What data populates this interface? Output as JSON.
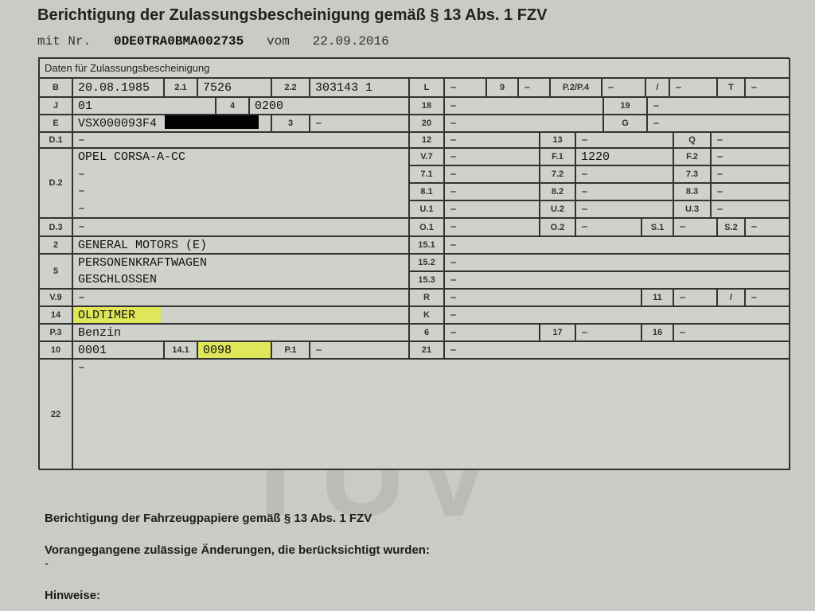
{
  "header": {
    "title": "Berichtigung der Zulassungsbescheinigung gemäß § 13 Abs. 1 FZV",
    "nr_label": "mit Nr.",
    "nr": "0DE0TRA0BMA002735",
    "vom_label": "vom",
    "date": "22.09.2016"
  },
  "watermark": "TÜV",
  "table": {
    "heading": "Daten für Zulassungsbescheinigung",
    "B": {
      "label": "B",
      "value": "20.08.1985"
    },
    "f2_1": {
      "label": "2.1",
      "value": "7526"
    },
    "f2_2": {
      "label": "2.2",
      "value": "303143 1"
    },
    "L": {
      "label": "L",
      "value": "–"
    },
    "f9": {
      "label": "9",
      "value": "–"
    },
    "P2P4": {
      "label": "P.2/P.4",
      "value": "–"
    },
    "slash1": {
      "label": "/",
      "value": "–"
    },
    "T": {
      "label": "T",
      "value": "–"
    },
    "J": {
      "label": "J",
      "value": "01"
    },
    "f4": {
      "label": "4",
      "value": "0200"
    },
    "f18": {
      "label": "18",
      "value": "–"
    },
    "f19": {
      "label": "19",
      "value": "–"
    },
    "E": {
      "label": "E",
      "value": "VSX000093F4"
    },
    "f3": {
      "label": "3",
      "value": "–"
    },
    "f20": {
      "label": "20",
      "value": "–"
    },
    "G": {
      "label": "G",
      "value": "–"
    },
    "D1": {
      "label": "D.1",
      "value": "–"
    },
    "f12": {
      "label": "12",
      "value": "–"
    },
    "f13": {
      "label": "13",
      "value": "–"
    },
    "Q": {
      "label": "Q",
      "value": "–"
    },
    "D2": {
      "label": "D.2",
      "lines": [
        "OPEL CORSA-A-CC",
        "–",
        "–",
        "–"
      ]
    },
    "V7": {
      "label": "V.7",
      "value": "–"
    },
    "F1": {
      "label": "F.1",
      "value": "1220"
    },
    "F2": {
      "label": "F.2",
      "value": "–"
    },
    "f7_1": {
      "label": "7.1",
      "value": "–"
    },
    "f7_2": {
      "label": "7.2",
      "value": "–"
    },
    "f7_3": {
      "label": "7.3",
      "value": "–"
    },
    "f8_1": {
      "label": "8.1",
      "value": "–"
    },
    "f8_2": {
      "label": "8.2",
      "value": "–"
    },
    "f8_3": {
      "label": "8.3",
      "value": "–"
    },
    "U1": {
      "label": "U.1",
      "value": "–"
    },
    "U2": {
      "label": "U.2",
      "value": "–"
    },
    "U3": {
      "label": "U.3",
      "value": "–"
    },
    "D3": {
      "label": "D.3",
      "value": "–"
    },
    "O1": {
      "label": "O.1",
      "value": "–"
    },
    "O2": {
      "label": "O.2",
      "value": "–"
    },
    "S1": {
      "label": "S.1",
      "value": "–"
    },
    "S2": {
      "label": "S.2",
      "value": "–"
    },
    "f2": {
      "label": "2",
      "value": "GENERAL MOTORS (E)"
    },
    "f15_1": {
      "label": "15.1",
      "value": "–"
    },
    "f5": {
      "label": "5",
      "lines": [
        "PERSONENKRAFTWAGEN",
        "GESCHLOSSEN"
      ]
    },
    "f15_2": {
      "label": "15.2",
      "value": "–"
    },
    "f15_3": {
      "label": "15.3",
      "value": "–"
    },
    "V9": {
      "label": "V.9",
      "value": "–"
    },
    "R": {
      "label": "R",
      "value": "–"
    },
    "f11": {
      "label": "11",
      "value": "–"
    },
    "slash2": {
      "label": "/",
      "value": "–"
    },
    "f14": {
      "label": "14",
      "value": "OLDTIMER"
    },
    "K": {
      "label": "K",
      "value": "–"
    },
    "P3": {
      "label": "P.3",
      "value": "Benzin"
    },
    "f6": {
      "label": "6",
      "value": "–"
    },
    "f17": {
      "label": "17",
      "value": "–"
    },
    "f16": {
      "label": "16",
      "value": "–"
    },
    "f10": {
      "label": "10",
      "value": "0001"
    },
    "f14_1": {
      "label": "14.1",
      "value": "0098"
    },
    "P1": {
      "label": "P.1",
      "value": "–"
    },
    "f21": {
      "label": "21",
      "value": "–"
    },
    "f22": {
      "label": "22",
      "value": "–"
    }
  },
  "highlight_color": "#dfe65a",
  "footer": {
    "title": "Berichtigung der Fahrzeugpapiere gemäß § 13 Abs. 1 FZV",
    "changes": "Vorangegangene zulässige Änderungen, die berücksichtigt wurden:",
    "changes_value": "-",
    "notes": "Hinweise:"
  }
}
